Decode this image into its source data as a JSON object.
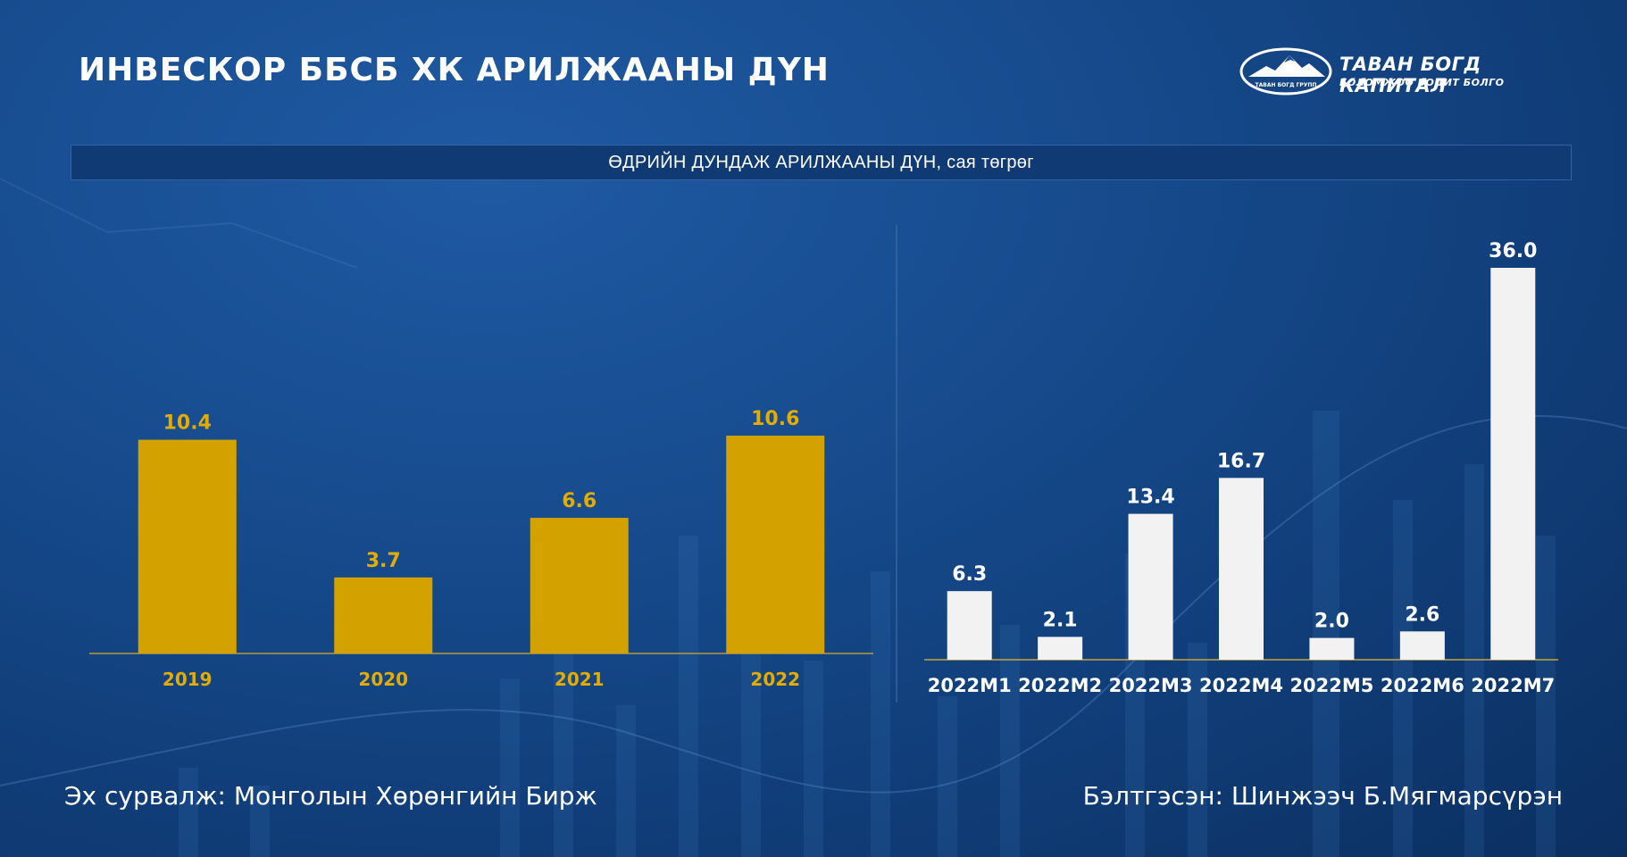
{
  "header": {
    "title": "ИНВЕСКОР ББСБ ХК АРИЛЖААНЫ ДҮН",
    "logo_name": "ТАВАН БОГД КАПИТАЛ",
    "logo_tagline": "БОЛОМЖОО БОДИТ БОЛГО",
    "logo_badge": "ТАВАН БОГД ГРУПП"
  },
  "subtitle": "ӨДРИЙН ДУНДАЖ АРИЛЖААНЫ ДҮН, сая төгрөг",
  "footer": {
    "source": "Эх сурвалж: Монголын Хөрөнгийн Бирж",
    "prepared_by": "Бэлтгэсэн: Шинжээч Б.Мягмарсүрэн"
  },
  "colors": {
    "yearly_bar": "#d4a200",
    "monthly_bar": "#f2f2f2",
    "yearly_text": "#e2ad00",
    "monthly_text": "#ffffff"
  },
  "chart_data": [
    {
      "type": "bar",
      "categories": [
        "2019",
        "2020",
        "2021",
        "2022"
      ],
      "values": [
        10.4,
        3.7,
        6.6,
        10.6
      ],
      "value_labels": [
        "10.4",
        "3.7",
        "6.6",
        "10.6"
      ],
      "ylim": [
        0,
        10.6
      ]
    },
    {
      "type": "bar",
      "categories": [
        "2022M1",
        "2022M2",
        "2022M3",
        "2022M4",
        "2022M5",
        "2022M6",
        "2022M7"
      ],
      "values": [
        6.3,
        2.1,
        13.4,
        16.7,
        2.0,
        2.6,
        36.0
      ],
      "value_labels": [
        "6.3",
        "2.1",
        "13.4",
        "16.7",
        "2.0",
        "2.6",
        "36.0"
      ],
      "ylim": [
        0,
        36.0
      ]
    }
  ]
}
